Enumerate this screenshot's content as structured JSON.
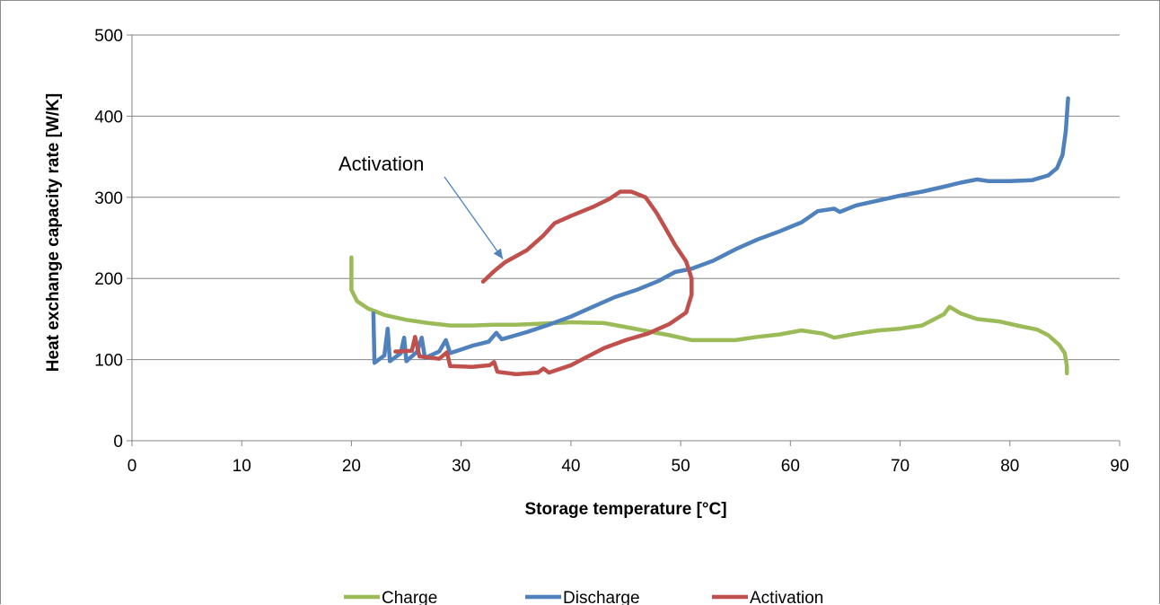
{
  "chart_data": {
    "type": "line",
    "title": "",
    "xlabel": "Storage temperature [°C]",
    "ylabel": "Heat exchange capacity rate [W/K]",
    "xlim": [
      0,
      90
    ],
    "ylim": [
      0,
      500
    ],
    "x_ticks": [
      "0",
      "10",
      "20",
      "30",
      "40",
      "50",
      "60",
      "70",
      "80",
      "90"
    ],
    "y_ticks": [
      "0",
      "100",
      "200",
      "300",
      "400",
      "500"
    ],
    "grid": "horizontal",
    "legend_position": "bottom",
    "annotation": {
      "text": "Activation",
      "arrow_to": [
        33.8,
        224
      ]
    },
    "series": [
      {
        "name": "Charge",
        "color": "#9bbb59",
        "points": [
          [
            20,
            226
          ],
          [
            20,
            186
          ],
          [
            20.5,
            172
          ],
          [
            21.5,
            163
          ],
          [
            23,
            155
          ],
          [
            25,
            149
          ],
          [
            27,
            145
          ],
          [
            29,
            142
          ],
          [
            31,
            142
          ],
          [
            33,
            143
          ],
          [
            35,
            143
          ],
          [
            37,
            144
          ],
          [
            40,
            146
          ],
          [
            43,
            145
          ],
          [
            45,
            140
          ],
          [
            47,
            135
          ],
          [
            49,
            130
          ],
          [
            51,
            124
          ],
          [
            53,
            124
          ],
          [
            55,
            124
          ],
          [
            57,
            128
          ],
          [
            59,
            131
          ],
          [
            61,
            136
          ],
          [
            63,
            132
          ],
          [
            64,
            127
          ],
          [
            66,
            132
          ],
          [
            68,
            136
          ],
          [
            70,
            138
          ],
          [
            72,
            142
          ],
          [
            74,
            156
          ],
          [
            74.5,
            165
          ],
          [
            75.5,
            157
          ],
          [
            77,
            150
          ],
          [
            79,
            147
          ],
          [
            81,
            141
          ],
          [
            82.5,
            137
          ],
          [
            83.5,
            130
          ],
          [
            84.5,
            118
          ],
          [
            85,
            108
          ],
          [
            85.2,
            92
          ],
          [
            85.2,
            83
          ]
        ]
      },
      {
        "name": "Discharge",
        "color": "#4f81bd",
        "points": [
          [
            22,
            157
          ],
          [
            22.1,
            96
          ],
          [
            23,
            105
          ],
          [
            23.3,
            138
          ],
          [
            23.5,
            98
          ],
          [
            24.5,
            108
          ],
          [
            24.8,
            127
          ],
          [
            25,
            98
          ],
          [
            26,
            110
          ],
          [
            26.4,
            127
          ],
          [
            26.7,
            102
          ],
          [
            28,
            110
          ],
          [
            28.6,
            124
          ],
          [
            29,
            108
          ],
          [
            31,
            117
          ],
          [
            32.5,
            122
          ],
          [
            33.2,
            133
          ],
          [
            33.7,
            125
          ],
          [
            36,
            134
          ],
          [
            38,
            143
          ],
          [
            40,
            153
          ],
          [
            42,
            165
          ],
          [
            44,
            177
          ],
          [
            46,
            186
          ],
          [
            48,
            197
          ],
          [
            49.5,
            208
          ],
          [
            51,
            212
          ],
          [
            53,
            222
          ],
          [
            55,
            236
          ],
          [
            57,
            248
          ],
          [
            59,
            258
          ],
          [
            61,
            269
          ],
          [
            62.5,
            283
          ],
          [
            64,
            286
          ],
          [
            64.5,
            282
          ],
          [
            66,
            290
          ],
          [
            68,
            296
          ],
          [
            70,
            302
          ],
          [
            72,
            307
          ],
          [
            74,
            313
          ],
          [
            75.5,
            318
          ],
          [
            77,
            322
          ],
          [
            78,
            320
          ],
          [
            80,
            320
          ],
          [
            82,
            321
          ],
          [
            83.5,
            327
          ],
          [
            84.3,
            336
          ],
          [
            84.8,
            352
          ],
          [
            85.1,
            382
          ],
          [
            85.3,
            422
          ]
        ]
      },
      {
        "name": "Activation",
        "color": "#c0504d",
        "points": [
          [
            24,
            110
          ],
          [
            25.5,
            111
          ],
          [
            25.8,
            128
          ],
          [
            26.2,
            104
          ],
          [
            28,
            101
          ],
          [
            28.7,
            109
          ],
          [
            29,
            92
          ],
          [
            31,
            91
          ],
          [
            32.6,
            93
          ],
          [
            33,
            97
          ],
          [
            33.3,
            85
          ],
          [
            35,
            82
          ],
          [
            37,
            84
          ],
          [
            37.5,
            89
          ],
          [
            38,
            84
          ],
          [
            40,
            93
          ],
          [
            42,
            107
          ],
          [
            43,
            114
          ],
          [
            45,
            124
          ],
          [
            47,
            132
          ],
          [
            49,
            144
          ],
          [
            50.5,
            158
          ],
          [
            51,
            180
          ],
          [
            51,
            200
          ],
          [
            50.5,
            221
          ],
          [
            49.5,
            241
          ],
          [
            48.7,
            260
          ],
          [
            47.8,
            281
          ],
          [
            46.8,
            300
          ],
          [
            45.5,
            307
          ],
          [
            44.5,
            307
          ],
          [
            43.5,
            298
          ],
          [
            42,
            288
          ],
          [
            40,
            277
          ],
          [
            38.5,
            268
          ],
          [
            37.5,
            253
          ],
          [
            36,
            235
          ],
          [
            34,
            220
          ],
          [
            33,
            209
          ],
          [
            32,
            196
          ]
        ]
      }
    ]
  }
}
